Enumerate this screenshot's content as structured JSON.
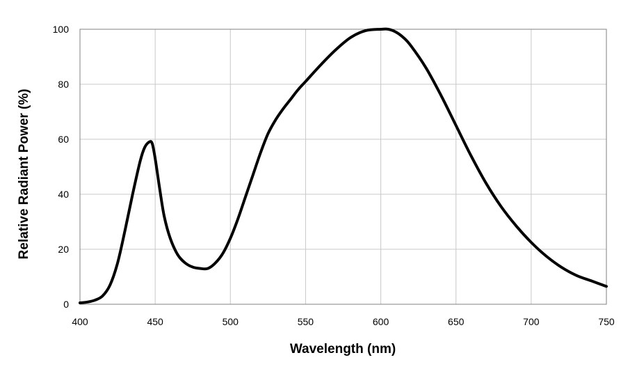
{
  "chart_data": {
    "type": "line",
    "title": "",
    "xlabel": "Wavelength (nm)",
    "ylabel": "Relative Radiant Power (%)",
    "xlim": [
      400,
      750
    ],
    "ylim": [
      0,
      100
    ],
    "x_ticks": [
      "400",
      "450",
      "500",
      "550",
      "600",
      "650",
      "700",
      "750"
    ],
    "y_ticks": [
      "0",
      "20",
      "40",
      "60",
      "80",
      "100"
    ],
    "grid": true,
    "legend": "none",
    "series": [
      {
        "color": "#000000",
        "x": [
          400,
          405,
          410,
          415,
          420,
          425,
          430,
          435,
          440,
          443,
          446,
          448,
          450,
          453,
          456,
          460,
          465,
          470,
          475,
          480,
          485,
          490,
          495,
          500,
          505,
          510,
          515,
          520,
          525,
          530,
          535,
          540,
          545,
          550,
          560,
          570,
          580,
          590,
          600,
          605,
          610,
          615,
          620,
          630,
          640,
          650,
          660,
          670,
          680,
          690,
          700,
          710,
          720,
          730,
          740,
          750
        ],
        "y": [
          0.5,
          0.8,
          1.5,
          3.0,
          7.0,
          15.0,
          27.0,
          40.0,
          52.0,
          57.0,
          59.0,
          58.5,
          53.0,
          42.0,
          32.0,
          24.0,
          18.0,
          15.0,
          13.5,
          13.0,
          13.0,
          15.0,
          18.5,
          24.0,
          31.0,
          39.0,
          47.0,
          55.0,
          62.0,
          67.0,
          71.0,
          74.5,
          78.0,
          81.0,
          87.0,
          92.5,
          97.0,
          99.5,
          100.0,
          100.0,
          99.0,
          97.0,
          94.0,
          86.0,
          76.0,
          65.0,
          54.0,
          44.0,
          35.5,
          28.5,
          22.5,
          17.5,
          13.5,
          10.5,
          8.5,
          6.5
        ]
      }
    ]
  }
}
